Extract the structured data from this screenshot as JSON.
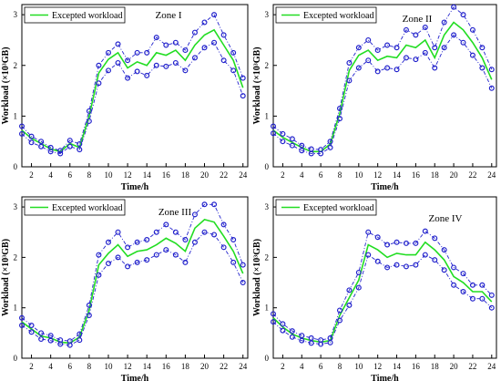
{
  "chart_data": [
    {
      "type": "line",
      "title": "Zone I",
      "xlabel": "Time/h",
      "ylabel": "Workload (×10³GB)",
      "legend": "top-left",
      "grid": false,
      "xlim": [
        1,
        24.5
      ],
      "ylim": [
        0,
        3.2
      ],
      "xticks": [
        2,
        4,
        6,
        8,
        10,
        12,
        14,
        16,
        18,
        20,
        22,
        24
      ],
      "yticks": [
        0,
        1,
        2,
        3
      ],
      "x": [
        1,
        2,
        3,
        4,
        5,
        6,
        7,
        8,
        9,
        10,
        11,
        12,
        13,
        14,
        15,
        16,
        17,
        18,
        19,
        20,
        21,
        22,
        23,
        24
      ],
      "series": [
        {
          "name": "Excepted workload",
          "role": "expected",
          "values": [
            0.72,
            0.56,
            0.46,
            0.35,
            0.3,
            0.46,
            0.38,
            1.0,
            1.85,
            2.12,
            2.25,
            1.95,
            2.07,
            2.0,
            2.25,
            2.2,
            2.3,
            2.1,
            2.4,
            2.6,
            2.7,
            2.4,
            2.1,
            1.56
          ]
        },
        {
          "role": "upper",
          "values": [
            0.8,
            0.6,
            0.5,
            0.38,
            0.32,
            0.52,
            0.45,
            1.1,
            2.0,
            2.25,
            2.42,
            2.1,
            2.25,
            2.25,
            2.55,
            2.4,
            2.45,
            2.3,
            2.65,
            2.85,
            3.0,
            2.6,
            2.25,
            1.75
          ]
        },
        {
          "role": "lower",
          "values": [
            0.65,
            0.48,
            0.4,
            0.3,
            0.26,
            0.4,
            0.34,
            0.9,
            1.65,
            1.9,
            2.05,
            1.75,
            1.88,
            1.8,
            2.0,
            1.98,
            2.05,
            1.9,
            2.15,
            2.35,
            2.45,
            2.1,
            1.9,
            1.4
          ]
        }
      ],
      "colors": {
        "expected": "#22dd22",
        "band": "#2222cc"
      }
    },
    {
      "type": "line",
      "title": "Zone II",
      "xlabel": "Time/h",
      "ylabel": "Workload (×10³GB)",
      "legend": "top-left",
      "grid": false,
      "xlim": [
        1,
        24.5
      ],
      "ylim": [
        0,
        3.2
      ],
      "xticks": [
        2,
        4,
        6,
        8,
        10,
        12,
        14,
        16,
        18,
        20,
        22,
        24
      ],
      "yticks": [
        0,
        1,
        2,
        3
      ],
      "x": [
        1,
        2,
        3,
        4,
        5,
        6,
        7,
        8,
        9,
        10,
        11,
        12,
        13,
        14,
        15,
        16,
        17,
        18,
        19,
        20,
        21,
        22,
        23,
        24
      ],
      "series": [
        {
          "name": "Excepted workload",
          "role": "expected",
          "values": [
            0.72,
            0.58,
            0.48,
            0.38,
            0.3,
            0.3,
            0.45,
            1.05,
            1.9,
            2.2,
            2.3,
            2.1,
            2.18,
            2.15,
            2.4,
            2.35,
            2.5,
            2.15,
            2.6,
            2.85,
            2.7,
            2.45,
            2.15,
            1.72
          ]
        },
        {
          "role": "upper",
          "values": [
            0.8,
            0.65,
            0.55,
            0.42,
            0.35,
            0.34,
            0.5,
            1.15,
            2.05,
            2.35,
            2.5,
            2.3,
            2.4,
            2.35,
            2.7,
            2.6,
            2.75,
            2.35,
            2.85,
            3.15,
            3.0,
            2.7,
            2.35,
            1.92
          ]
        },
        {
          "role": "lower",
          "values": [
            0.66,
            0.5,
            0.42,
            0.32,
            0.26,
            0.26,
            0.38,
            0.95,
            1.7,
            1.95,
            2.1,
            1.88,
            1.95,
            1.92,
            2.15,
            2.12,
            2.25,
            1.95,
            2.35,
            2.6,
            2.45,
            2.2,
            1.95,
            1.55
          ]
        }
      ],
      "colors": {
        "expected": "#22dd22",
        "band": "#2222cc"
      }
    },
    {
      "type": "line",
      "title": "Zone III",
      "xlabel": "Time/h",
      "ylabel": "Workload (×10³GB)",
      "legend": "top-left",
      "grid": false,
      "xlim": [
        1,
        24.5
      ],
      "ylim": [
        0,
        3.2
      ],
      "xticks": [
        2,
        4,
        6,
        8,
        10,
        12,
        14,
        16,
        18,
        20,
        22,
        24
      ],
      "yticks": [
        0,
        1,
        2,
        3
      ],
      "x": [
        1,
        2,
        3,
        4,
        5,
        6,
        7,
        8,
        9,
        10,
        11,
        12,
        13,
        14,
        15,
        16,
        17,
        18,
        19,
        20,
        21,
        22,
        23,
        24
      ],
      "series": [
        {
          "name": "Excepted workload",
          "role": "expected",
          "values": [
            0.72,
            0.58,
            0.44,
            0.4,
            0.32,
            0.3,
            0.42,
            0.95,
            1.85,
            2.08,
            2.25,
            2.02,
            2.12,
            2.15,
            2.25,
            2.38,
            2.28,
            2.12,
            2.58,
            2.75,
            2.7,
            2.42,
            2.12,
            1.68
          ]
        },
        {
          "role": "upper",
          "values": [
            0.8,
            0.65,
            0.5,
            0.45,
            0.36,
            0.34,
            0.48,
            1.05,
            2.05,
            2.3,
            2.5,
            2.2,
            2.3,
            2.35,
            2.5,
            2.65,
            2.5,
            2.35,
            2.85,
            3.05,
            3.05,
            2.65,
            2.35,
            1.85
          ]
        },
        {
          "role": "lower",
          "values": [
            0.65,
            0.52,
            0.38,
            0.35,
            0.28,
            0.26,
            0.36,
            0.85,
            1.65,
            1.88,
            2.0,
            1.82,
            1.9,
            1.95,
            2.05,
            2.15,
            2.05,
            1.9,
            2.3,
            2.5,
            2.45,
            2.2,
            1.9,
            1.5
          ]
        }
      ],
      "colors": {
        "expected": "#22dd22",
        "band": "#2222cc"
      }
    },
    {
      "type": "line",
      "title": "Zone IV",
      "xlabel": "Time/h",
      "ylabel": "Workload (×10³GB)",
      "legend": "top-left",
      "grid": false,
      "xlim": [
        1,
        24.5
      ],
      "ylim": [
        0,
        3.2
      ],
      "xticks": [
        2,
        4,
        6,
        8,
        10,
        12,
        14,
        16,
        18,
        20,
        22,
        24
      ],
      "yticks": [
        0,
        1,
        2,
        3
      ],
      "x": [
        1,
        2,
        3,
        4,
        5,
        6,
        7,
        8,
        9,
        10,
        11,
        12,
        13,
        14,
        15,
        16,
        17,
        18,
        19,
        20,
        21,
        22,
        23,
        24
      ],
      "series": [
        {
          "name": "Excepted workload",
          "role": "expected",
          "values": [
            0.8,
            0.62,
            0.48,
            0.4,
            0.35,
            0.32,
            0.35,
            0.85,
            1.2,
            1.55,
            2.25,
            2.15,
            2.0,
            2.08,
            2.05,
            2.05,
            2.3,
            2.15,
            1.95,
            1.62,
            1.5,
            1.32,
            1.32,
            1.12
          ]
        },
        {
          "role": "upper",
          "values": [
            0.88,
            0.68,
            0.54,
            0.45,
            0.4,
            0.36,
            0.4,
            0.95,
            1.35,
            1.7,
            2.5,
            2.4,
            2.25,
            2.3,
            2.28,
            2.28,
            2.52,
            2.38,
            2.15,
            1.8,
            1.68,
            1.45,
            1.45,
            1.25
          ]
        },
        {
          "role": "lower",
          "values": [
            0.72,
            0.55,
            0.42,
            0.35,
            0.3,
            0.28,
            0.31,
            0.75,
            1.05,
            1.4,
            2.05,
            1.92,
            1.8,
            1.85,
            1.82,
            1.85,
            2.05,
            1.95,
            1.75,
            1.45,
            1.32,
            1.18,
            1.18,
            1.0
          ]
        }
      ],
      "colors": {
        "expected": "#22dd22",
        "band": "#2222cc"
      }
    }
  ]
}
